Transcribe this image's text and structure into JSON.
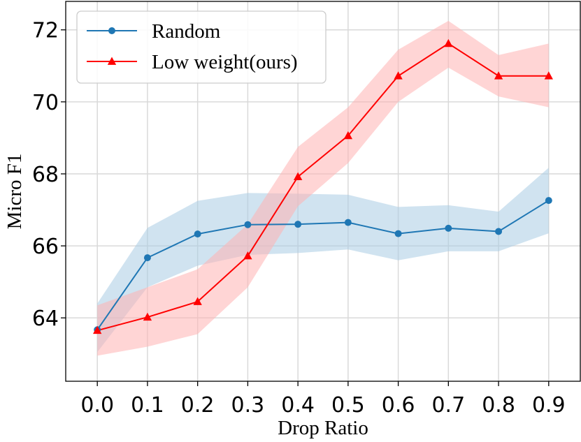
{
  "chart_data": {
    "type": "line",
    "xlabel": "Drop Ratio",
    "ylabel": "Micro F1",
    "x": [
      0.0,
      0.1,
      0.2,
      0.3,
      0.4,
      0.5,
      0.6,
      0.7,
      0.8,
      0.9
    ],
    "x_tick_labels": [
      "0.0",
      "0.1",
      "0.2",
      "0.3",
      "0.4",
      "0.5",
      "0.6",
      "0.7",
      "0.8",
      "0.9"
    ],
    "y_ticks": [
      64,
      66,
      68,
      70,
      72
    ],
    "y_tick_labels": [
      "64",
      "66",
      "68",
      "70",
      "72"
    ],
    "xlim": [
      -0.063,
      0.963
    ],
    "ylim": [
      62.24,
      72.79
    ],
    "grid": true,
    "legend_position": "top-left",
    "series": [
      {
        "name": "Random",
        "color": "#1f77b4",
        "band_color": "#a9cce4",
        "marker": "circle",
        "values": [
          63.67,
          65.67,
          66.33,
          66.59,
          66.6,
          66.65,
          66.34,
          66.49,
          66.4,
          67.26
        ],
        "lower": [
          63.05,
          64.85,
          65.45,
          65.75,
          65.8,
          65.9,
          65.6,
          65.85,
          65.85,
          66.35
        ],
        "upper": [
          64.4,
          66.5,
          67.25,
          67.47,
          67.45,
          67.42,
          67.08,
          67.13,
          66.95,
          68.17
        ]
      },
      {
        "name": "Low weight(ours)",
        "color": "#ff0000",
        "band_color": "#ffb3b3",
        "marker": "triangle",
        "values": [
          63.65,
          64.02,
          64.45,
          65.72,
          67.92,
          69.06,
          70.72,
          71.62,
          70.72,
          70.72
        ],
        "lower": [
          62.95,
          63.2,
          63.55,
          64.85,
          67.1,
          68.3,
          70.0,
          70.95,
          70.15,
          69.85
        ],
        "upper": [
          64.35,
          64.85,
          65.35,
          66.6,
          68.75,
          69.85,
          71.45,
          72.25,
          71.3,
          71.62
        ]
      }
    ]
  }
}
